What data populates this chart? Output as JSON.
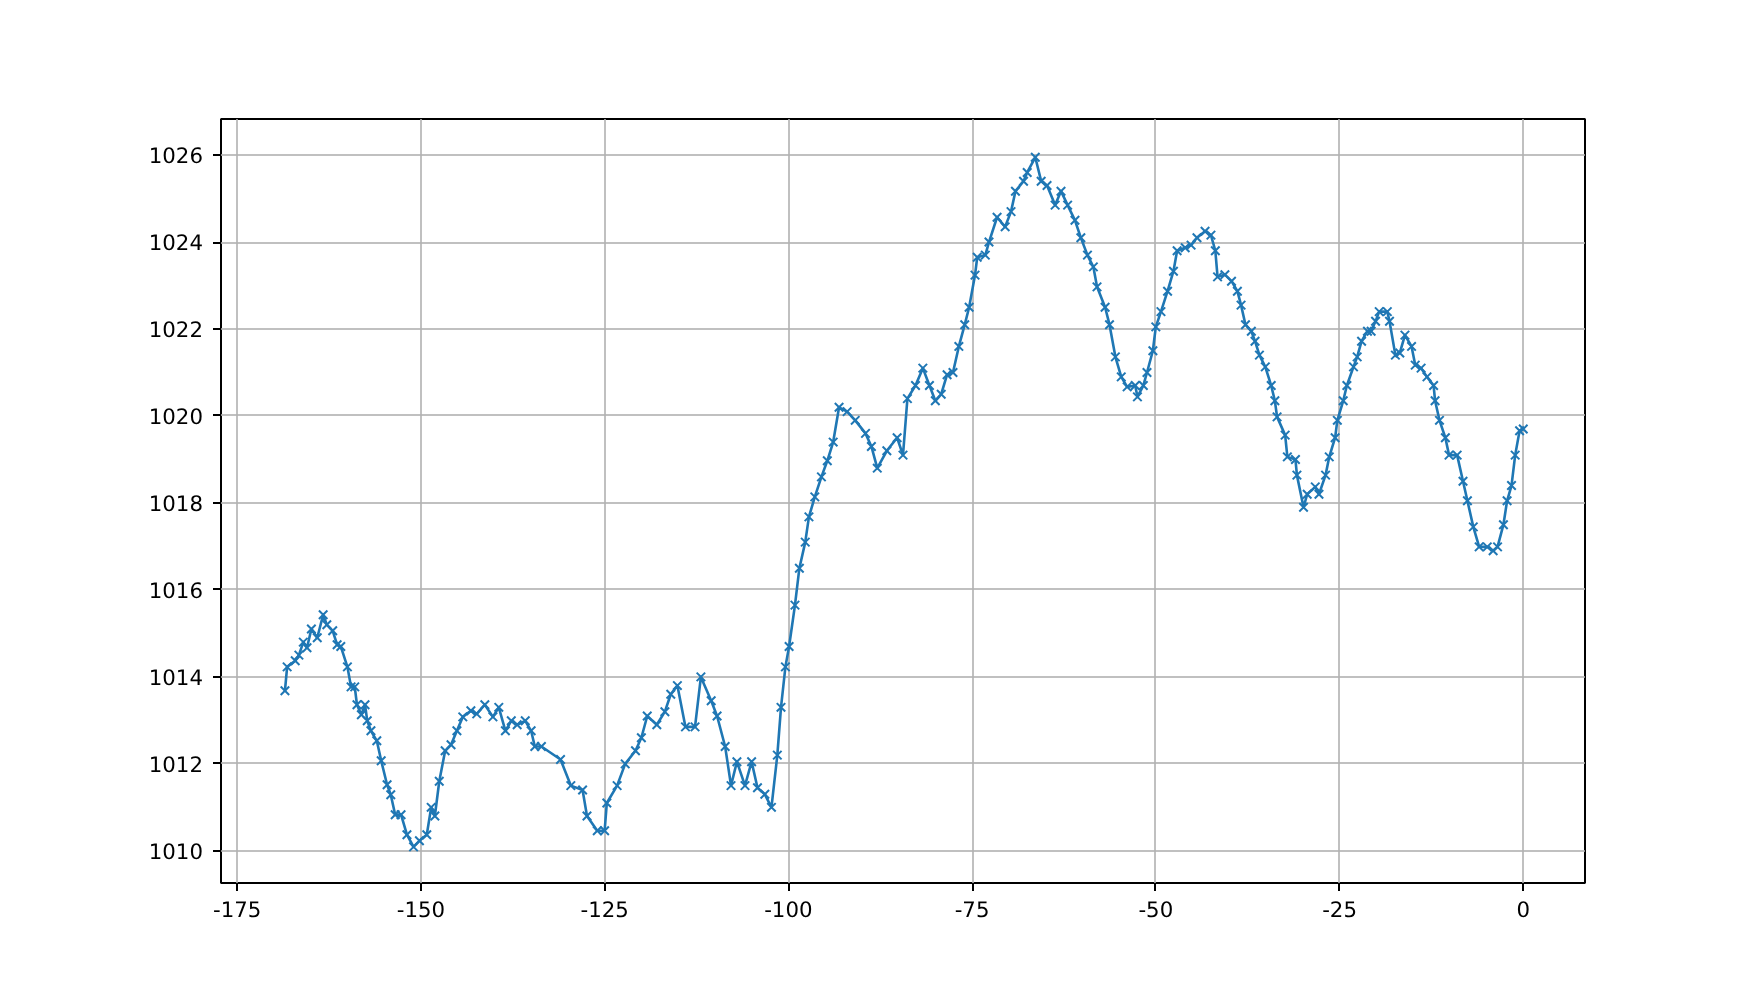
{
  "chart_data": {
    "type": "line",
    "marker": "cross",
    "line_style": "solid",
    "grid": true,
    "xlim": [
      -177.2,
      8.4
    ],
    "ylim": [
      1009.26,
      1026.83
    ],
    "xticks": [
      -175,
      -150,
      -125,
      -100,
      -75,
      -50,
      -25,
      0
    ],
    "yticks": [
      1010,
      1012,
      1014,
      1016,
      1018,
      1020,
      1022,
      1024,
      1026
    ],
    "series": [
      {
        "color": "#1f77b4",
        "x": [
          -168.5,
          -168.2,
          -167.1,
          -166.6,
          -166.0,
          -165.5,
          -164.9,
          -164.1,
          -163.3,
          -162.8,
          -162.0,
          -161.4,
          -160.9,
          -160.0,
          -159.5,
          -159.0,
          -158.7,
          -158.1,
          -157.6,
          -157.3,
          -156.8,
          -156.0,
          -155.4,
          -154.6,
          -154.1,
          -153.5,
          -152.7,
          -151.9,
          -151.0,
          -150.2,
          -149.2,
          -148.6,
          -148.1,
          -147.5,
          -146.7,
          -145.9,
          -145.1,
          -144.3,
          -143.2,
          -142.4,
          -141.3,
          -140.2,
          -139.4,
          -138.5,
          -137.7,
          -136.9,
          -135.8,
          -135.0,
          -134.5,
          -133.6,
          -131.0,
          -129.6,
          -128.0,
          -127.4,
          -126.0,
          -125.0,
          -124.7,
          -123.3,
          -122.2,
          -120.8,
          -120.0,
          -119.2,
          -117.9,
          -116.8,
          -116.0,
          -115.1,
          -114.0,
          -112.7,
          -111.9,
          -110.5,
          -109.7,
          -108.6,
          -107.8,
          -107.0,
          -105.9,
          -105.0,
          -104.2,
          -103.2,
          -102.3,
          -101.5,
          -101.0,
          -100.4,
          -99.9,
          -99.1,
          -98.5,
          -97.7,
          -97.2,
          -96.4,
          -95.5,
          -94.7,
          -93.9,
          -93.1,
          -92.0,
          -90.9,
          -89.5,
          -88.7,
          -87.9,
          -86.6,
          -85.2,
          -84.4,
          -83.8,
          -82.7,
          -81.7,
          -80.8,
          -80.0,
          -79.2,
          -78.4,
          -77.6,
          -76.8,
          -76.0,
          -75.4,
          -74.6,
          -74.3,
          -73.2,
          -72.7,
          -71.6,
          -70.5,
          -69.7,
          -69.1,
          -68.0,
          -67.5,
          -66.4,
          -65.6,
          -64.8,
          -63.7,
          -62.9,
          -62.0,
          -61.0,
          -60.2,
          -59.3,
          -58.5,
          -58.0,
          -56.9,
          -56.3,
          -55.5,
          -54.7,
          -53.9,
          -52.8,
          -52.5,
          -51.7,
          -51.2,
          -50.4,
          -50.0,
          -49.3,
          -48.4,
          -47.6,
          -47.1,
          -46.0,
          -45.2,
          -44.4,
          -43.3,
          -42.5,
          -41.9,
          -41.6,
          -40.6,
          -39.7,
          -38.9,
          -38.4,
          -37.8,
          -37.0,
          -36.5,
          -35.9,
          -35.1,
          -34.3,
          -33.8,
          -33.5,
          -32.4,
          -32.1,
          -31.0,
          -30.8,
          -29.9,
          -29.4,
          -28.3,
          -27.8,
          -26.9,
          -26.4,
          -25.6,
          -25.3,
          -24.5,
          -24.0,
          -23.1,
          -22.6,
          -22.0,
          -21.2,
          -20.7,
          -20.1,
          -19.6,
          -18.5,
          -18.2,
          -17.4,
          -16.8,
          -16.1,
          -15.2,
          -14.7,
          -13.9,
          -13.1,
          -12.2,
          -12.0,
          -11.4,
          -10.6,
          -10.1,
          -9.0,
          -8.2,
          -7.6,
          -6.8,
          -6.0,
          -4.9,
          -4.1,
          -3.5,
          -2.7,
          -2.2,
          -1.6,
          -1.1,
          -0.5,
          0.0
        ],
        "values": [
          1013.68,
          1014.23,
          1014.37,
          1014.5,
          1014.8,
          1014.67,
          1015.1,
          1014.9,
          1015.43,
          1015.2,
          1015.06,
          1014.74,
          1014.7,
          1014.23,
          1013.77,
          1013.77,
          1013.36,
          1013.13,
          1013.36,
          1012.99,
          1012.76,
          1012.53,
          1012.07,
          1011.52,
          1011.29,
          1010.83,
          1010.83,
          1010.37,
          1010.09,
          1010.23,
          1010.37,
          1011.0,
          1010.8,
          1011.6,
          1012.3,
          1012.44,
          1012.76,
          1013.08,
          1013.22,
          1013.15,
          1013.36,
          1013.08,
          1013.3,
          1012.76,
          1012.99,
          1012.9,
          1012.99,
          1012.76,
          1012.4,
          1012.4,
          1012.1,
          1011.5,
          1011.4,
          1010.8,
          1010.46,
          1010.46,
          1011.1,
          1011.5,
          1012.0,
          1012.3,
          1012.6,
          1013.1,
          1012.9,
          1013.2,
          1013.6,
          1013.8,
          1012.85,
          1012.85,
          1014.0,
          1013.45,
          1013.1,
          1012.4,
          1011.5,
          1012.05,
          1011.5,
          1012.05,
          1011.45,
          1011.3,
          1011.0,
          1012.2,
          1013.3,
          1014.23,
          1014.7,
          1015.65,
          1016.5,
          1017.1,
          1017.68,
          1018.14,
          1018.6,
          1018.97,
          1019.4,
          1020.2,
          1020.1,
          1019.9,
          1019.6,
          1019.3,
          1018.8,
          1019.2,
          1019.5,
          1019.1,
          1020.4,
          1020.7,
          1021.1,
          1020.7,
          1020.35,
          1020.5,
          1020.95,
          1021.0,
          1021.6,
          1022.1,
          1022.5,
          1023.24,
          1023.65,
          1023.7,
          1024.0,
          1024.57,
          1024.35,
          1024.7,
          1025.17,
          1025.4,
          1025.6,
          1025.95,
          1025.4,
          1025.3,
          1024.85,
          1025.17,
          1024.85,
          1024.5,
          1024.1,
          1023.7,
          1023.43,
          1022.97,
          1022.5,
          1022.1,
          1021.36,
          1020.9,
          1020.67,
          1020.7,
          1020.44,
          1020.7,
          1021.0,
          1021.5,
          1022.05,
          1022.4,
          1022.87,
          1023.33,
          1023.8,
          1023.87,
          1023.93,
          1024.1,
          1024.25,
          1024.16,
          1023.8,
          1023.2,
          1023.25,
          1023.1,
          1022.87,
          1022.55,
          1022.1,
          1021.95,
          1021.72,
          1021.4,
          1021.13,
          1020.7,
          1020.35,
          1019.98,
          1019.56,
          1019.06,
          1019.0,
          1018.64,
          1017.9,
          1018.2,
          1018.37,
          1018.2,
          1018.64,
          1019.06,
          1019.5,
          1019.9,
          1020.35,
          1020.7,
          1021.13,
          1021.36,
          1021.72,
          1021.95,
          1021.95,
          1022.18,
          1022.4,
          1022.4,
          1022.18,
          1021.4,
          1021.45,
          1021.86,
          1021.6,
          1021.17,
          1021.1,
          1020.9,
          1020.7,
          1020.35,
          1019.9,
          1019.5,
          1019.1,
          1019.1,
          1018.5,
          1018.05,
          1017.45,
          1016.99,
          1016.99,
          1016.9,
          1016.99,
          1017.5,
          1018.05,
          1018.4,
          1019.1,
          1019.66,
          1019.7
        ]
      }
    ]
  }
}
